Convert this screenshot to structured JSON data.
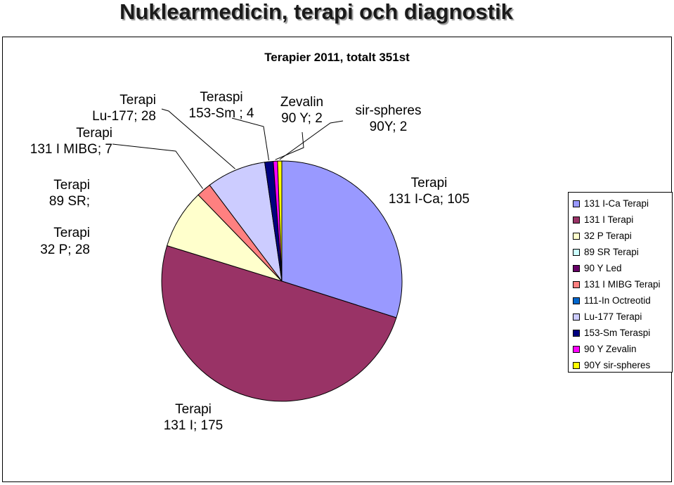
{
  "page_title": "Nuklearmedicin, terapi och diagnostik",
  "chart_data": {
    "type": "pie",
    "title": "Terapier 2011, totalt 351st",
    "slices": [
      {
        "legend": "131 I-Ca Terapi",
        "label_lines": [
          "Terapi",
          "131 I-Ca; 105"
        ],
        "value": 105,
        "color": "#9999ff"
      },
      {
        "legend": "131 I Terapi",
        "label_lines": [
          "Terapi",
          "131 I; 175"
        ],
        "value": 175,
        "color": "#993366"
      },
      {
        "legend": "32 P Terapi",
        "label_lines": [
          "Terapi",
          "32 P; 28"
        ],
        "value": 28,
        "color": "#ffffcc"
      },
      {
        "legend": "89 SR Terapi",
        "label_lines": [
          "Terapi",
          "89 SR;"
        ],
        "value": 0,
        "color": "#ccffff"
      },
      {
        "legend": "90 Y Led",
        "label_lines": [],
        "value": 0,
        "color": "#660066"
      },
      {
        "legend": "131 I MIBG Terapi",
        "label_lines": [
          "Terapi",
          "131 I MIBG; 7"
        ],
        "value": 7,
        "color": "#ff8080"
      },
      {
        "legend": "111-In Octreotid",
        "label_lines": [],
        "value": 0,
        "color": "#0066cc"
      },
      {
        "legend": "Lu-177 Terapi",
        "label_lines": [
          "Terapi",
          "Lu-177; 28"
        ],
        "value": 28,
        "color": "#ccccff"
      },
      {
        "legend": "153-Sm  Teraspi",
        "label_lines": [
          "Teraspi",
          "153-Sm ; 4"
        ],
        "value": 4,
        "color": "#000080"
      },
      {
        "legend": "90 Y Zevalin",
        "label_lines": [
          "Zevalin",
          "90 Y; 2"
        ],
        "value": 2,
        "color": "#ff00ff"
      },
      {
        "legend": "90Y sir-spheres",
        "label_lines": [
          "sir-spheres",
          "90Y; 2"
        ],
        "value": 2,
        "color": "#ffff00"
      }
    ],
    "legend_position": "right"
  }
}
